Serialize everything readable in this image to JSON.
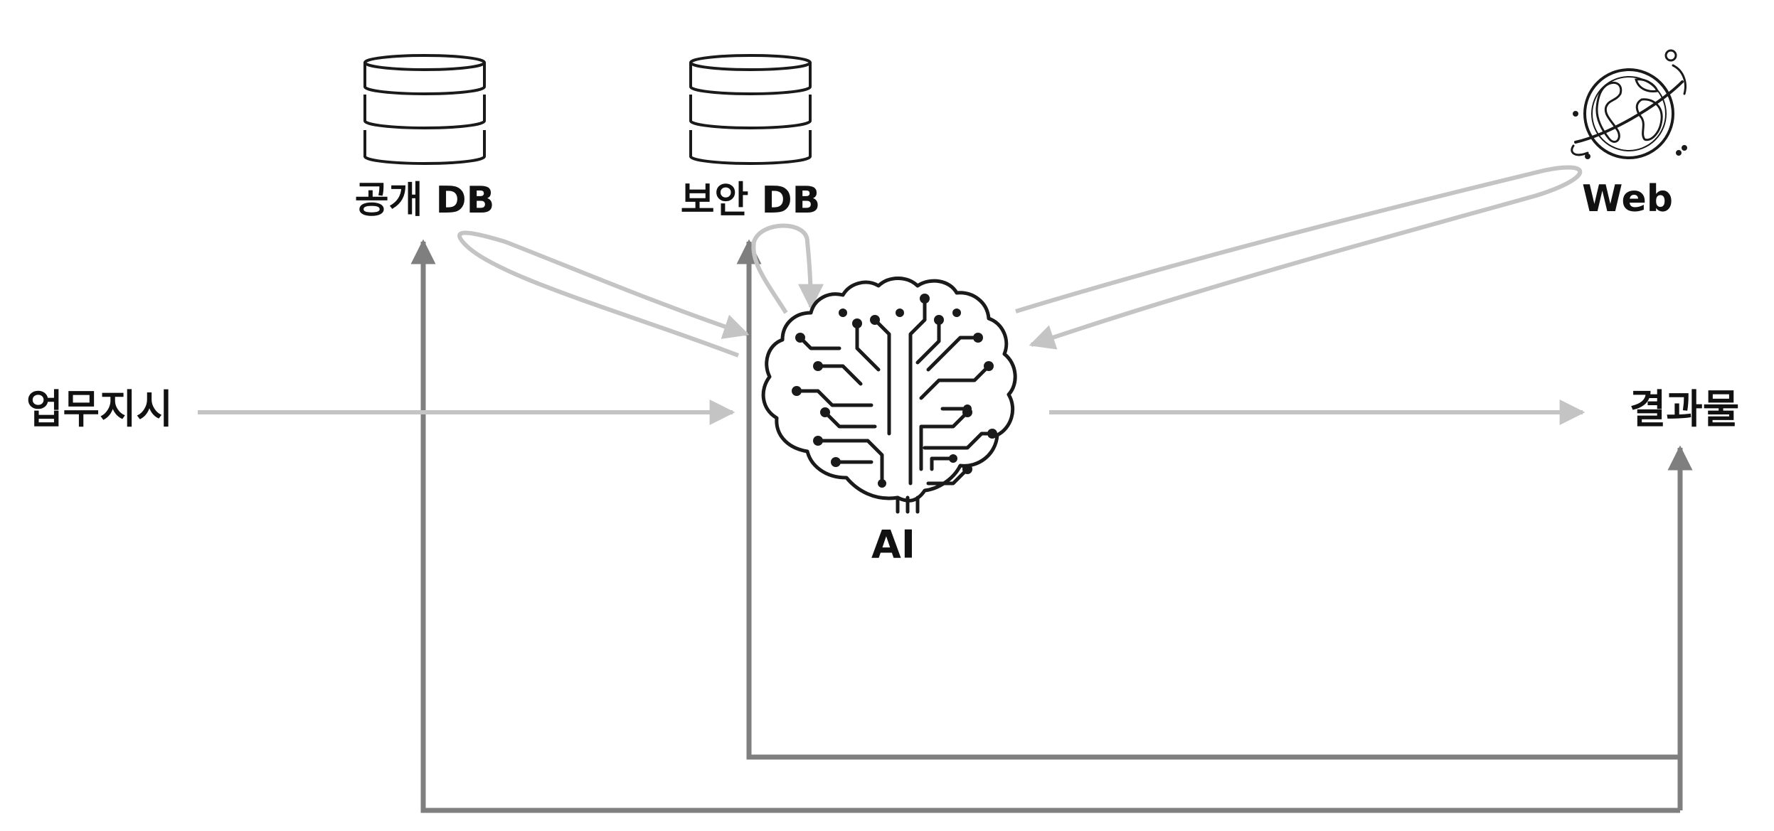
{
  "nodes": {
    "instruction": {
      "label": "업무지시"
    },
    "public_db": {
      "label": "공개 DB"
    },
    "secure_db": {
      "label": "보안 DB"
    },
    "web": {
      "label": "Web"
    },
    "ai": {
      "label": "AI"
    },
    "result": {
      "label": "결과물"
    }
  },
  "colors": {
    "light_arrow": "#c4c4c4",
    "dark_arrow": "#7f7f7f",
    "icon_stroke": "#1a1a1a",
    "text": "#111111"
  },
  "icons": {
    "public_db": "database-icon",
    "secure_db": "database-icon",
    "web": "globe-icon",
    "ai": "circuit-brain-icon"
  }
}
